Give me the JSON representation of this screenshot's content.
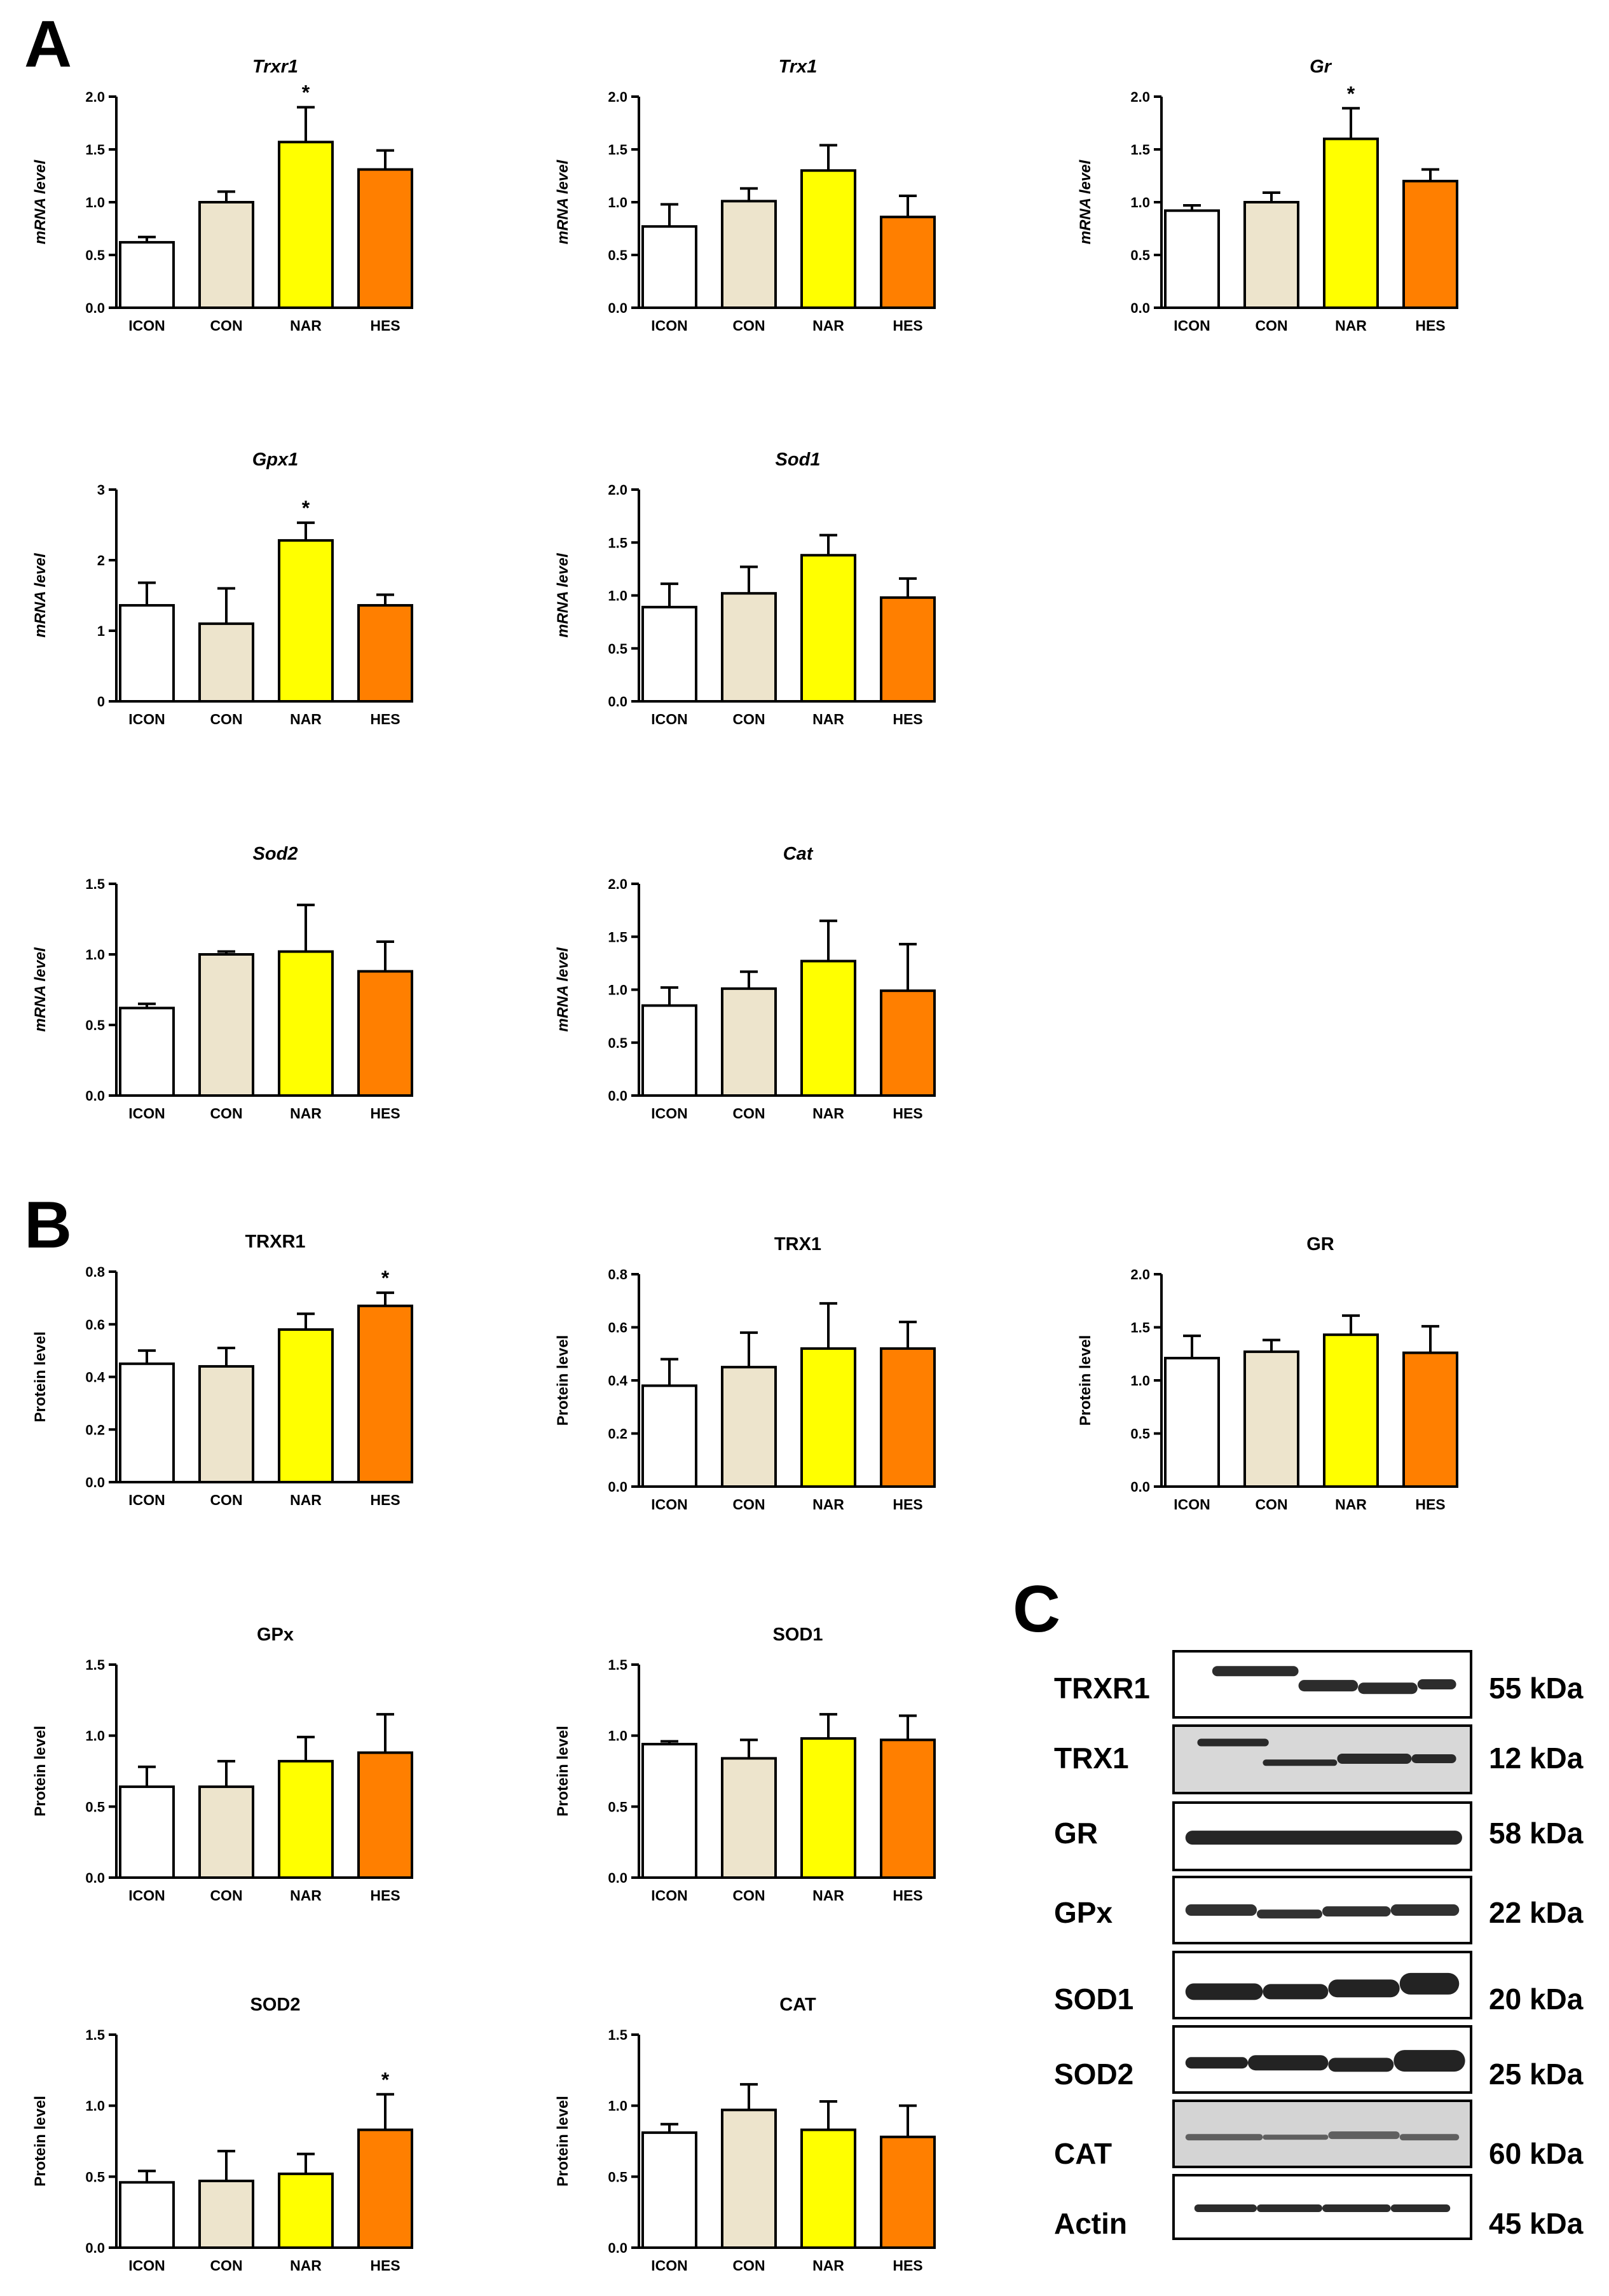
{
  "panel_labels": {
    "A": "A",
    "B": "B",
    "C": "C"
  },
  "colors": {
    "ICON": "#ffffff",
    "CON": "#ede4cc",
    "NAR": "#ffff00",
    "HES": "#ff7f00"
  },
  "chart_data": [
    {
      "type": "bar",
      "title": "Trxr1",
      "title_italic": true,
      "ylabel": "mRNA level",
      "ylabel_italic": true,
      "categories": [
        "ICON",
        "CON",
        "NAR",
        "HES"
      ],
      "values": [
        0.62,
        1.0,
        1.57,
        1.31
      ],
      "errors": [
        0.05,
        0.1,
        0.33,
        0.18
      ],
      "significance": [
        "",
        "",
        "*",
        ""
      ],
      "ylim": [
        0,
        2.0
      ],
      "yticks": [
        "0.0",
        "0.5",
        "1.0",
        "1.5",
        "2.0"
      ]
    },
    {
      "type": "bar",
      "title": "Trx1",
      "title_italic": true,
      "ylabel": "mRNA level",
      "ylabel_italic": true,
      "categories": [
        "ICON",
        "CON",
        "NAR",
        "HES"
      ],
      "values": [
        0.77,
        1.01,
        1.3,
        0.86
      ],
      "errors": [
        0.21,
        0.12,
        0.24,
        0.2
      ],
      "significance": [
        "",
        "",
        "",
        ""
      ],
      "ylim": [
        0,
        2.0
      ],
      "yticks": [
        "0.0",
        "0.5",
        "1.0",
        "1.5",
        "2.0"
      ]
    },
    {
      "type": "bar",
      "title": "Gr",
      "title_italic": true,
      "ylabel": "mRNA level",
      "ylabel_italic": true,
      "categories": [
        "ICON",
        "CON",
        "NAR",
        "HES"
      ],
      "values": [
        0.92,
        1.0,
        1.6,
        1.2
      ],
      "errors": [
        0.05,
        0.09,
        0.29,
        0.11
      ],
      "significance": [
        "",
        "",
        "*",
        ""
      ],
      "ylim": [
        0,
        2.0
      ],
      "yticks": [
        "0.0",
        "0.5",
        "1.0",
        "1.5",
        "2.0"
      ]
    },
    {
      "type": "bar",
      "title": "Gpx1",
      "title_italic": true,
      "ylabel": "mRNA level",
      "ylabel_italic": true,
      "categories": [
        "ICON",
        "CON",
        "NAR",
        "HES"
      ],
      "values": [
        1.36,
        1.1,
        2.28,
        1.36
      ],
      "errors": [
        0.32,
        0.5,
        0.25,
        0.15
      ],
      "significance": [
        "",
        "",
        "*",
        ""
      ],
      "ylim": [
        0,
        3
      ],
      "yticks": [
        "0",
        "1",
        "2",
        "3"
      ]
    },
    {
      "type": "bar",
      "title": "Sod1",
      "title_italic": true,
      "ylabel": "mRNA level",
      "ylabel_italic": true,
      "categories": [
        "ICON",
        "CON",
        "NAR",
        "HES"
      ],
      "values": [
        0.89,
        1.02,
        1.38,
        0.98
      ],
      "errors": [
        0.22,
        0.25,
        0.19,
        0.18
      ],
      "significance": [
        "",
        "",
        "",
        ""
      ],
      "ylim": [
        0,
        2.0
      ],
      "yticks": [
        "0.0",
        "0.5",
        "1.0",
        "1.5",
        "2.0"
      ]
    },
    {
      "type": "bar",
      "title": "Sod2",
      "title_italic": true,
      "ylabel": "mRNA level",
      "ylabel_italic": true,
      "categories": [
        "ICON",
        "CON",
        "NAR",
        "HES"
      ],
      "values": [
        0.62,
        1.0,
        1.02,
        0.88
      ],
      "errors": [
        0.03,
        0.02,
        0.33,
        0.21
      ],
      "significance": [
        "",
        "",
        "",
        ""
      ],
      "ylim": [
        0,
        1.5
      ],
      "yticks": [
        "0.0",
        "0.5",
        "1.0",
        "1.5"
      ]
    },
    {
      "type": "bar",
      "title": "Cat",
      "title_italic": true,
      "ylabel": "mRNA level",
      "ylabel_italic": true,
      "categories": [
        "ICON",
        "CON",
        "NAR",
        "HES"
      ],
      "values": [
        0.85,
        1.01,
        1.27,
        0.99
      ],
      "errors": [
        0.17,
        0.16,
        0.38,
        0.44
      ],
      "significance": [
        "",
        "",
        "",
        ""
      ],
      "ylim": [
        0,
        2.0
      ],
      "yticks": [
        "0.0",
        "0.5",
        "1.0",
        "1.5",
        "2.0"
      ]
    },
    {
      "type": "bar",
      "title": "TRXR1",
      "title_italic": false,
      "ylabel": "Protein level",
      "ylabel_italic": false,
      "categories": [
        "ICON",
        "CON",
        "NAR",
        "HES"
      ],
      "values": [
        0.45,
        0.44,
        0.58,
        0.67
      ],
      "errors": [
        0.05,
        0.07,
        0.06,
        0.05
      ],
      "significance": [
        "",
        "",
        "",
        "*"
      ],
      "ylim": [
        0,
        0.8
      ],
      "yticks": [
        "0.0",
        "0.2",
        "0.4",
        "0.6",
        "0.8"
      ]
    },
    {
      "type": "bar",
      "title": "TRX1",
      "title_italic": false,
      "ylabel": "Protein level",
      "ylabel_italic": false,
      "categories": [
        "ICON",
        "CON",
        "NAR",
        "HES"
      ],
      "values": [
        0.38,
        0.45,
        0.52,
        0.52
      ],
      "errors": [
        0.1,
        0.13,
        0.17,
        0.1
      ],
      "significance": [
        "",
        "",
        "",
        ""
      ],
      "ylim": [
        0,
        0.8
      ],
      "yticks": [
        "0.0",
        "0.2",
        "0.4",
        "0.6",
        "0.8"
      ]
    },
    {
      "type": "bar",
      "title": "GR",
      "title_italic": false,
      "ylabel": "Protein level",
      "ylabel_italic": false,
      "categories": [
        "ICON",
        "CON",
        "NAR",
        "HES"
      ],
      "values": [
        1.21,
        1.27,
        1.43,
        1.26
      ],
      "errors": [
        0.21,
        0.11,
        0.18,
        0.25
      ],
      "significance": [
        "",
        "",
        "",
        ""
      ],
      "ylim": [
        0,
        2.0
      ],
      "yticks": [
        "0.0",
        "0.5",
        "1.0",
        "1.5",
        "2.0"
      ]
    },
    {
      "type": "bar",
      "title": "GPx",
      "title_italic": false,
      "ylabel": "Protein level",
      "ylabel_italic": false,
      "categories": [
        "ICON",
        "CON",
        "NAR",
        "HES"
      ],
      "values": [
        0.64,
        0.64,
        0.82,
        0.88
      ],
      "errors": [
        0.14,
        0.18,
        0.17,
        0.27
      ],
      "significance": [
        "",
        "",
        "",
        ""
      ],
      "ylim": [
        0,
        1.5
      ],
      "yticks": [
        "0.0",
        "0.5",
        "1.0",
        "1.5"
      ]
    },
    {
      "type": "bar",
      "title": "SOD1",
      "title_italic": false,
      "ylabel": "Protein level",
      "ylabel_italic": false,
      "categories": [
        "ICON",
        "CON",
        "NAR",
        "HES"
      ],
      "values": [
        0.94,
        0.84,
        0.98,
        0.97
      ],
      "errors": [
        0.02,
        0.13,
        0.17,
        0.17
      ],
      "significance": [
        "",
        "",
        "",
        ""
      ],
      "ylim": [
        0,
        1.5
      ],
      "yticks": [
        "0.0",
        "0.5",
        "1.0",
        "1.5"
      ]
    },
    {
      "type": "bar",
      "title": "SOD2",
      "title_italic": false,
      "ylabel": "Protein level",
      "ylabel_italic": false,
      "categories": [
        "ICON",
        "CON",
        "NAR",
        "HES"
      ],
      "values": [
        0.46,
        0.47,
        0.52,
        0.83
      ],
      "errors": [
        0.08,
        0.21,
        0.14,
        0.25
      ],
      "significance": [
        "",
        "",
        "",
        "*"
      ],
      "ylim": [
        0,
        1.5
      ],
      "yticks": [
        "0.0",
        "0.5",
        "1.0",
        "1.5"
      ]
    },
    {
      "type": "bar",
      "title": "CAT",
      "title_italic": false,
      "ylabel": "Protein level",
      "ylabel_italic": false,
      "categories": [
        "ICON",
        "CON",
        "NAR",
        "HES"
      ],
      "values": [
        0.81,
        0.97,
        0.83,
        0.78
      ],
      "errors": [
        0.06,
        0.18,
        0.2,
        0.22
      ],
      "significance": [
        "",
        "",
        "",
        ""
      ],
      "ylim": [
        0,
        1.5
      ],
      "yticks": [
        "0.0",
        "0.5",
        "1.0",
        "1.5"
      ]
    }
  ],
  "blot": {
    "rows": [
      {
        "label": "TRXR1",
        "kda": "55 kDa"
      },
      {
        "label": "TRX1",
        "kda": "12 kDa"
      },
      {
        "label": "GR",
        "kda": "58 kDa"
      },
      {
        "label": "GPx",
        "kda": "22 kDa"
      },
      {
        "label": "SOD1",
        "kda": "20 kDa"
      },
      {
        "label": "SOD2",
        "kda": "25 kDa"
      },
      {
        "label": "CAT",
        "kda": "60 kDa"
      },
      {
        "label": "Actin",
        "kda": "45 kDa"
      }
    ]
  }
}
